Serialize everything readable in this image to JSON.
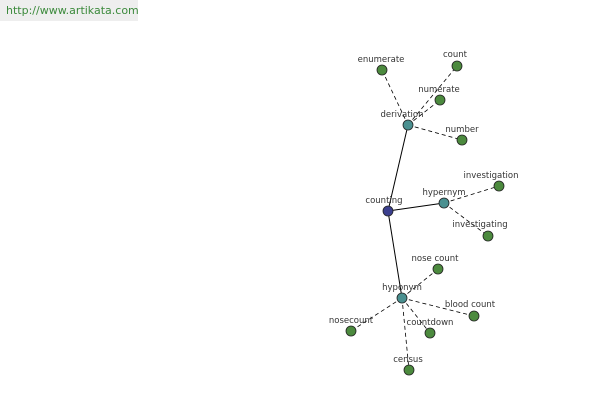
{
  "header": {
    "url": "http://www.artikata.com"
  },
  "nodes": [
    {
      "label": "counting"
    },
    {
      "label": "derivation"
    },
    {
      "label": "hypernym"
    },
    {
      "label": "hyponym"
    },
    {
      "label": "enumerate"
    },
    {
      "label": "count"
    },
    {
      "label": "numerate"
    },
    {
      "label": "number"
    },
    {
      "label": "investigation"
    },
    {
      "label": "investigating"
    },
    {
      "label": "nose count"
    },
    {
      "label": "blood count"
    },
    {
      "label": "countdown"
    },
    {
      "label": "nosecount"
    },
    {
      "label": "census"
    }
  ]
}
